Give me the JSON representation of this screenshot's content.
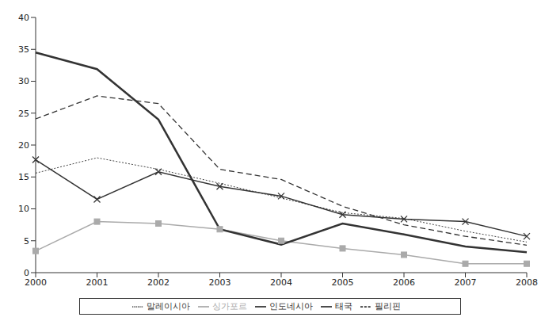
{
  "chart_data": {
    "type": "line",
    "categories": [
      "2000",
      "2001",
      "2002",
      "2003",
      "2004",
      "2005",
      "2006",
      "2007",
      "2008"
    ],
    "series": [
      {
        "name": "말레이시아",
        "color": "#444444",
        "line_style": "dotted",
        "marker": "none",
        "values": [
          15.6,
          18.0,
          16.2,
          14.0,
          11.7,
          9.4,
          8.5,
          6.5,
          4.8
        ]
      },
      {
        "name": "싱가포르",
        "color": "#aaaaaa",
        "line_style": "solid",
        "marker": "square",
        "values": [
          3.4,
          8.0,
          7.7,
          6.8,
          5.0,
          3.8,
          2.8,
          1.4,
          1.4
        ]
      },
      {
        "name": "인도네시아",
        "color": "#333333",
        "line_style": "solid",
        "marker": "none",
        "values": [
          34.5,
          31.9,
          24.0,
          6.8,
          4.4,
          7.7,
          6.0,
          4.1,
          3.2
        ]
      },
      {
        "name": "태국",
        "color": "#333333",
        "line_style": "solid",
        "marker": "x",
        "values": [
          17.7,
          11.5,
          15.8,
          13.5,
          12.0,
          9.1,
          8.4,
          8.0,
          5.7
        ]
      },
      {
        "name": "필리핀",
        "color": "#333333",
        "line_style": "dashed",
        "marker": "none",
        "values": [
          24.1,
          27.7,
          26.5,
          16.2,
          14.6,
          10.4,
          7.5,
          5.7,
          4.3
        ]
      }
    ],
    "ylim": [
      0,
      40
    ],
    "yticks": [
      0,
      5,
      10,
      15,
      20,
      25,
      30,
      35,
      40
    ],
    "grid": false,
    "legend": "bottom"
  }
}
